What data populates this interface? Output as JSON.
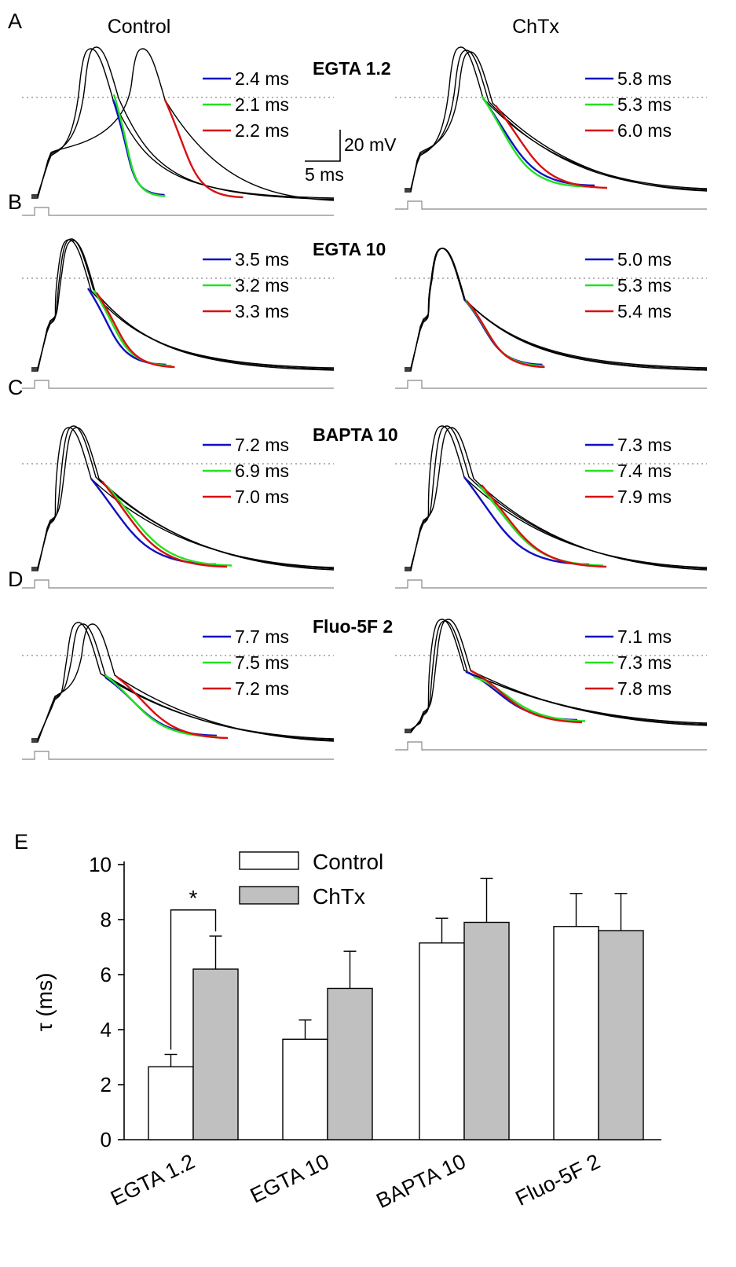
{
  "colors": {
    "trace": "#000000",
    "blue": "#1010c0",
    "green": "#22e022",
    "red": "#d81010",
    "control_bar": "#ffffff",
    "chtx_bar": "#c0c0c0",
    "dotted": "#888888",
    "stim": "#888888"
  },
  "columns": [
    "Control",
    "ChTx"
  ],
  "scale_bar": {
    "voltage": "20 mV",
    "time": "5 ms"
  },
  "rows": [
    {
      "letter": "A",
      "condition": "EGTA 1.2",
      "control_taus": [
        "2.4 ms",
        "2.1 ms",
        "2.2 ms"
      ],
      "chtx_taus": [
        "5.8 ms",
        "5.3 ms",
        "6.0 ms"
      ]
    },
    {
      "letter": "B",
      "condition": "EGTA 10",
      "control_taus": [
        "3.5 ms",
        "3.2 ms",
        "3.3 ms"
      ],
      "chtx_taus": [
        "5.0 ms",
        "5.3 ms",
        "5.4 ms"
      ]
    },
    {
      "letter": "C",
      "condition": "BAPTA 10",
      "control_taus": [
        "7.2 ms",
        "6.9 ms",
        "7.0 ms"
      ],
      "chtx_taus": [
        "7.3 ms",
        "7.4 ms",
        "7.9 ms"
      ]
    },
    {
      "letter": "D",
      "condition": "Fluo-5F 2",
      "control_taus": [
        "7.7 ms",
        "7.5 ms",
        "7.2 ms"
      ],
      "chtx_taus": [
        "7.1 ms",
        "7.3 ms",
        "7.8 ms"
      ]
    }
  ],
  "chart_data": {
    "panel": "E",
    "type": "bar",
    "categories": [
      "EGTA 1.2",
      "EGTA 10",
      "BAPTA 10",
      "Fluo-5F 2"
    ],
    "series": [
      {
        "name": "Control",
        "values": [
          2.65,
          3.65,
          7.15,
          7.75
        ],
        "errors": [
          0.45,
          0.7,
          0.9,
          1.2
        ]
      },
      {
        "name": "ChTx",
        "values": [
          6.2,
          5.5,
          7.9,
          7.6
        ],
        "errors": [
          1.2,
          1.35,
          1.6,
          1.35
        ]
      }
    ],
    "ylabel": "τ (ms)",
    "ylim": [
      0,
      10
    ],
    "yticks": [
      "0",
      "2",
      "4",
      "6",
      "8",
      "10"
    ],
    "significance": {
      "category": "EGTA 1.2",
      "label": "*"
    },
    "legend_position": "top-left"
  }
}
